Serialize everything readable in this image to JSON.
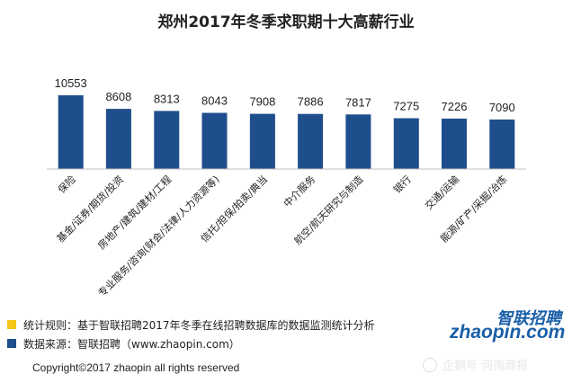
{
  "chart_data": {
    "type": "bar",
    "title": "郑州2017年冬季求职期十大高薪行业",
    "categories": [
      "保险",
      "基金/证券/期货/投资",
      "房地产/建筑/建材/工程",
      "专业服务/咨询(财会/法律/人力资源等)",
      "信托/担保/拍卖/典当",
      "中介服务",
      "航空/航天研究与制造",
      "银行",
      "交通/运输",
      "能源/矿产/采掘/冶炼"
    ],
    "values": [
      10553,
      8608,
      8313,
      8043,
      7908,
      7886,
      7817,
      7275,
      7226,
      7090
    ],
    "value_labels": [
      "10553",
      "8608",
      "8313",
      "8043",
      "7908",
      "7886",
      "7817",
      "7275",
      "7226",
      "7090"
    ],
    "ylim": [
      0,
      11000
    ],
    "bar_color": "#1f4e8c",
    "grid": false,
    "y_axis_visible": false
  },
  "legend": [
    {
      "swatch_color": "#f5c518",
      "text": "统计规则：基于智联招聘2017年冬季在线招聘数据库的数据监测统计分析"
    },
    {
      "swatch_color": "#1f4e8c",
      "text": "数据来源：智联招聘（www.zhaopin.com）"
    }
  ],
  "footer": {
    "copyright": "Copyright©2017 zhaopin all rights reserved"
  },
  "logo": {
    "cn": "智联招聘",
    "en": "zhaopin.com"
  },
  "watermark": {
    "text": "企鹅号 河南商报"
  }
}
